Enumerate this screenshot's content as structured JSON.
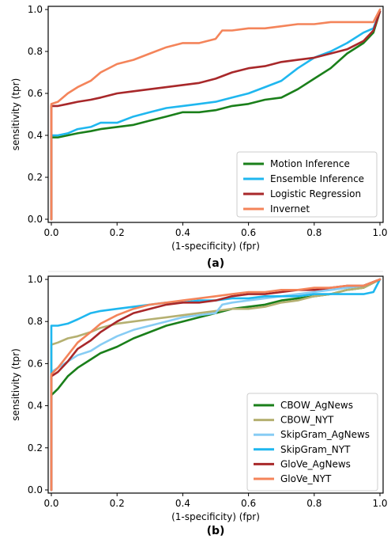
{
  "chart_data": [
    {
      "type": "line",
      "panel_label": "(a)",
      "xlabel": "(1-specificity) (fpr)",
      "ylabel": "sensitivity (tpr)",
      "xlim": [
        0,
        1
      ],
      "ylim": [
        0,
        1
      ],
      "xticks": [
        "0.0",
        "0.2",
        "0.4",
        "0.6",
        "0.8",
        "1.0"
      ],
      "yticks": [
        "0.0",
        "0.2",
        "0.4",
        "0.6",
        "0.8",
        "1.0"
      ],
      "legend_position": "bottom-right",
      "grid": false,
      "series": [
        {
          "name": "Motion Inference",
          "color": "#1a7f1a",
          "x": [
            0,
            0,
            0.02,
            0.05,
            0.08,
            0.12,
            0.15,
            0.2,
            0.25,
            0.3,
            0.35,
            0.4,
            0.45,
            0.5,
            0.55,
            0.6,
            0.65,
            0.7,
            0.75,
            0.8,
            0.85,
            0.9,
            0.95,
            0.98,
            1.0
          ],
          "y": [
            0,
            0.39,
            0.39,
            0.4,
            0.41,
            0.42,
            0.43,
            0.44,
            0.45,
            0.47,
            0.49,
            0.51,
            0.51,
            0.52,
            0.54,
            0.55,
            0.57,
            0.58,
            0.62,
            0.67,
            0.72,
            0.79,
            0.84,
            0.89,
            0.99
          ]
        },
        {
          "name": "Ensemble Inference",
          "color": "#1fb7ef",
          "x": [
            0,
            0,
            0.02,
            0.05,
            0.08,
            0.12,
            0.15,
            0.2,
            0.25,
            0.3,
            0.35,
            0.4,
            0.45,
            0.5,
            0.55,
            0.6,
            0.65,
            0.7,
            0.75,
            0.8,
            0.85,
            0.9,
            0.95,
            0.98,
            1.0
          ],
          "y": [
            0,
            0.4,
            0.4,
            0.41,
            0.43,
            0.44,
            0.46,
            0.46,
            0.49,
            0.51,
            0.53,
            0.54,
            0.55,
            0.56,
            0.58,
            0.6,
            0.63,
            0.66,
            0.72,
            0.77,
            0.8,
            0.84,
            0.89,
            0.91,
            0.99
          ]
        },
        {
          "name": "Logistic Regression",
          "color": "#a8282a",
          "x": [
            0,
            0,
            0.02,
            0.05,
            0.08,
            0.12,
            0.15,
            0.2,
            0.25,
            0.3,
            0.35,
            0.4,
            0.45,
            0.5,
            0.55,
            0.6,
            0.65,
            0.7,
            0.75,
            0.8,
            0.85,
            0.9,
            0.95,
            0.98,
            1.0
          ],
          "y": [
            0,
            0.54,
            0.54,
            0.55,
            0.56,
            0.57,
            0.58,
            0.6,
            0.61,
            0.62,
            0.63,
            0.64,
            0.65,
            0.67,
            0.7,
            0.72,
            0.73,
            0.75,
            0.76,
            0.77,
            0.79,
            0.81,
            0.85,
            0.9,
            0.99
          ]
        },
        {
          "name": "Invernet",
          "color": "#f4845a",
          "x": [
            0,
            0,
            0.02,
            0.05,
            0.08,
            0.12,
            0.15,
            0.2,
            0.25,
            0.3,
            0.35,
            0.4,
            0.45,
            0.5,
            0.52,
            0.55,
            0.6,
            0.65,
            0.7,
            0.75,
            0.8,
            0.85,
            0.9,
            0.95,
            0.98,
            1.0
          ],
          "y": [
            0,
            0.55,
            0.56,
            0.6,
            0.63,
            0.66,
            0.7,
            0.74,
            0.76,
            0.79,
            0.82,
            0.84,
            0.84,
            0.86,
            0.9,
            0.9,
            0.91,
            0.91,
            0.92,
            0.93,
            0.93,
            0.94,
            0.94,
            0.94,
            0.94,
            1.0
          ]
        }
      ]
    },
    {
      "type": "line",
      "panel_label": "(b)",
      "xlabel": "(1-specificity) (fpr)",
      "ylabel": "sensitivity (tpr)",
      "xlim": [
        0,
        1
      ],
      "ylim": [
        0,
        1
      ],
      "xticks": [
        "0.0",
        "0.2",
        "0.4",
        "0.6",
        "0.8",
        "1.0"
      ],
      "yticks": [
        "0.0",
        "0.2",
        "0.4",
        "0.6",
        "0.8",
        "1.0"
      ],
      "legend_position": "bottom-right",
      "grid": false,
      "series": [
        {
          "name": "CBOW_AgNews",
          "color": "#1a7f1a",
          "x": [
            0,
            0,
            0.02,
            0.05,
            0.08,
            0.12,
            0.15,
            0.2,
            0.25,
            0.3,
            0.35,
            0.4,
            0.45,
            0.5,
            0.55,
            0.6,
            0.65,
            0.7,
            0.75,
            0.8,
            0.85,
            0.9,
            0.95,
            1.0
          ],
          "y": [
            0,
            0.45,
            0.48,
            0.54,
            0.58,
            0.62,
            0.65,
            0.68,
            0.72,
            0.75,
            0.78,
            0.8,
            0.82,
            0.84,
            0.86,
            0.87,
            0.88,
            0.9,
            0.91,
            0.92,
            0.93,
            0.95,
            0.96,
            1.0
          ]
        },
        {
          "name": "CBOW_NYT",
          "color": "#b5b071",
          "x": [
            0,
            0,
            0.02,
            0.05,
            0.08,
            0.12,
            0.15,
            0.2,
            0.25,
            0.3,
            0.35,
            0.4,
            0.45,
            0.5,
            0.55,
            0.6,
            0.65,
            0.7,
            0.75,
            0.8,
            0.85,
            0.9,
            0.95,
            1.0
          ],
          "y": [
            0,
            0.69,
            0.7,
            0.72,
            0.73,
            0.75,
            0.77,
            0.79,
            0.8,
            0.81,
            0.82,
            0.83,
            0.84,
            0.85,
            0.86,
            0.86,
            0.87,
            0.89,
            0.9,
            0.92,
            0.93,
            0.95,
            0.96,
            1.0
          ]
        },
        {
          "name": "SkipGram_AgNews",
          "color": "#87ccf4",
          "x": [
            0,
            0,
            0.02,
            0.05,
            0.08,
            0.12,
            0.15,
            0.2,
            0.25,
            0.3,
            0.35,
            0.4,
            0.45,
            0.5,
            0.52,
            0.55,
            0.6,
            0.65,
            0.7,
            0.75,
            0.8,
            0.85,
            0.9,
            0.95,
            1.0
          ],
          "y": [
            0,
            0.56,
            0.58,
            0.61,
            0.64,
            0.66,
            0.69,
            0.73,
            0.76,
            0.78,
            0.8,
            0.82,
            0.83,
            0.84,
            0.88,
            0.89,
            0.9,
            0.91,
            0.92,
            0.93,
            0.94,
            0.95,
            0.96,
            0.97,
            1.0
          ]
        },
        {
          "name": "SkipGram_NYT",
          "color": "#1fb7ef",
          "x": [
            0,
            0,
            0.02,
            0.05,
            0.08,
            0.12,
            0.15,
            0.2,
            0.25,
            0.3,
            0.35,
            0.4,
            0.45,
            0.5,
            0.55,
            0.6,
            0.65,
            0.7,
            0.75,
            0.8,
            0.85,
            0.9,
            0.95,
            0.98,
            1.0
          ],
          "y": [
            0,
            0.78,
            0.78,
            0.79,
            0.81,
            0.84,
            0.85,
            0.86,
            0.87,
            0.88,
            0.89,
            0.89,
            0.9,
            0.9,
            0.91,
            0.91,
            0.92,
            0.92,
            0.92,
            0.93,
            0.93,
            0.93,
            0.93,
            0.94,
            1.0
          ]
        },
        {
          "name": "GloVe_AgNews",
          "color": "#a8282a",
          "x": [
            0,
            0,
            0.02,
            0.05,
            0.08,
            0.12,
            0.15,
            0.2,
            0.25,
            0.3,
            0.35,
            0.4,
            0.45,
            0.5,
            0.55,
            0.6,
            0.65,
            0.7,
            0.75,
            0.8,
            0.85,
            0.9,
            0.95,
            1.0
          ],
          "y": [
            0,
            0.54,
            0.56,
            0.61,
            0.67,
            0.71,
            0.75,
            0.8,
            0.84,
            0.86,
            0.88,
            0.89,
            0.89,
            0.9,
            0.92,
            0.93,
            0.93,
            0.94,
            0.95,
            0.95,
            0.96,
            0.97,
            0.97,
            1.0
          ]
        },
        {
          "name": "GloVe_NYT",
          "color": "#f4845a",
          "x": [
            0,
            0,
            0.02,
            0.05,
            0.08,
            0.12,
            0.15,
            0.2,
            0.25,
            0.3,
            0.35,
            0.4,
            0.45,
            0.5,
            0.55,
            0.6,
            0.65,
            0.7,
            0.75,
            0.8,
            0.85,
            0.9,
            0.95,
            1.0
          ],
          "y": [
            0,
            0.55,
            0.58,
            0.64,
            0.7,
            0.75,
            0.79,
            0.83,
            0.86,
            0.88,
            0.89,
            0.9,
            0.91,
            0.92,
            0.93,
            0.94,
            0.94,
            0.95,
            0.95,
            0.96,
            0.96,
            0.97,
            0.97,
            1.0
          ]
        }
      ]
    }
  ]
}
